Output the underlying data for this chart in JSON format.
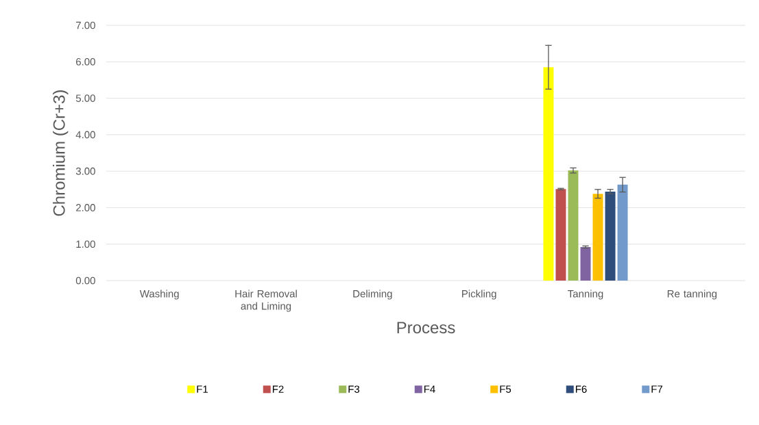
{
  "chart_data": {
    "type": "bar",
    "xlabel": "Process",
    "ylabel": "Chromium (Cr+3)",
    "categories": [
      "Washing",
      "Hair Removal and Liming",
      "Deliming",
      "Pickling",
      "Tanning",
      "Re tanning"
    ],
    "series": [
      {
        "name": "F1",
        "color": "#ffff00",
        "values": [
          0,
          0,
          0,
          0,
          5.85,
          0
        ],
        "errors": [
          null,
          null,
          null,
          null,
          0.6,
          null
        ]
      },
      {
        "name": "F2",
        "color": "#c0504d",
        "values": [
          0,
          0,
          0,
          0,
          2.51,
          0
        ],
        "errors": [
          null,
          null,
          null,
          null,
          0.02,
          null
        ]
      },
      {
        "name": "F3",
        "color": "#9bbb59",
        "values": [
          0,
          0,
          0,
          0,
          3.02,
          0
        ],
        "errors": [
          null,
          null,
          null,
          null,
          0.07,
          null
        ]
      },
      {
        "name": "F4",
        "color": "#8064a2",
        "values": [
          0,
          0,
          0,
          0,
          0.92,
          0
        ],
        "errors": [
          null,
          null,
          null,
          null,
          0.03,
          null
        ]
      },
      {
        "name": "F5",
        "color": "#ffc000",
        "values": [
          0,
          0,
          0,
          0,
          2.38,
          0
        ],
        "errors": [
          null,
          null,
          null,
          null,
          0.12,
          null
        ]
      },
      {
        "name": "F6",
        "color": "#2e4d7b",
        "values": [
          0,
          0,
          0,
          0,
          2.44,
          0
        ],
        "errors": [
          null,
          null,
          null,
          null,
          0.06,
          null
        ]
      },
      {
        "name": "F7",
        "color": "#729aca",
        "values": [
          0,
          0,
          0,
          0,
          2.63,
          0
        ],
        "errors": [
          null,
          null,
          null,
          null,
          0.2,
          null
        ]
      }
    ],
    "ylim": [
      0,
      7
    ],
    "yticks": [
      {
        "value": 0,
        "label": "0.00"
      },
      {
        "value": 1,
        "label": "1.00"
      },
      {
        "value": 2,
        "label": "2.00"
      },
      {
        "value": 3,
        "label": "3.00"
      },
      {
        "value": 4,
        "label": "4.00"
      },
      {
        "value": 5,
        "label": "5.00"
      },
      {
        "value": 6,
        "label": "6.00"
      },
      {
        "value": 7,
        "label": "7.00"
      }
    ],
    "grid": "y",
    "legend": "bottom"
  }
}
